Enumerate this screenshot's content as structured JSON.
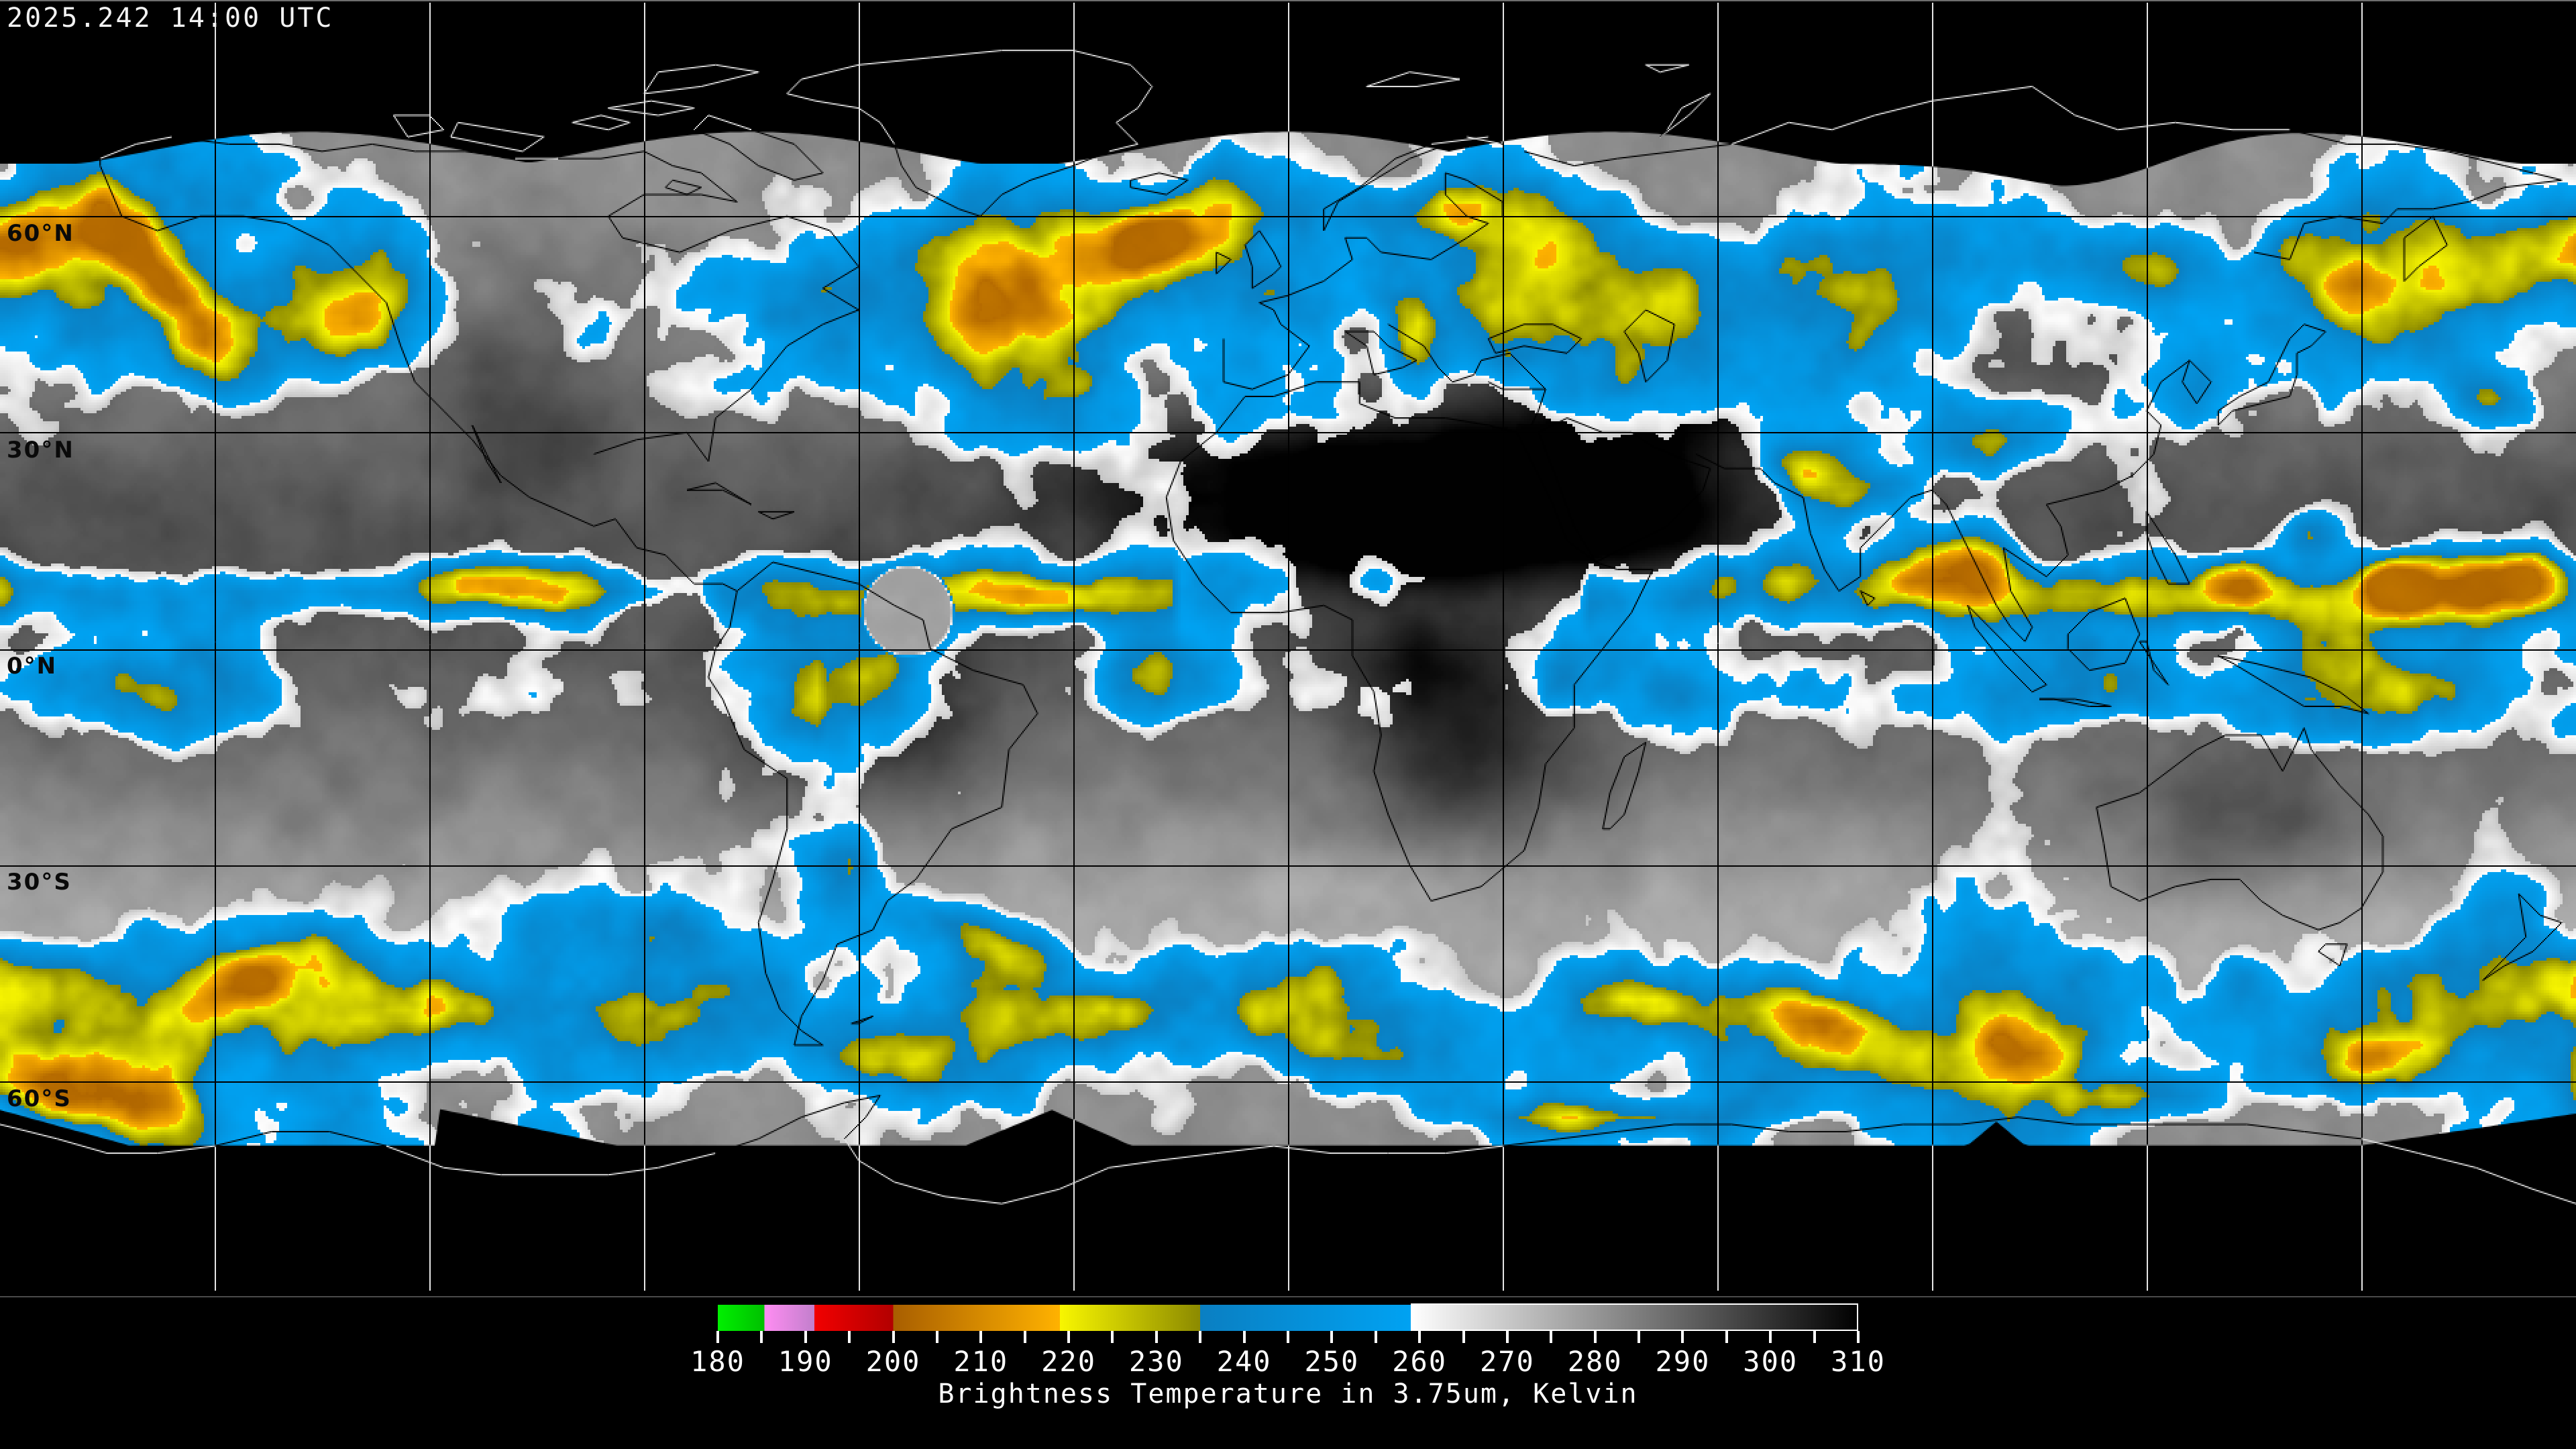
{
  "header": {
    "timestamp": "2025.242 14:00 UTC"
  },
  "map": {
    "projection": "equirectangular",
    "lon_range": [
      -180,
      180
    ],
    "lat_range": [
      -90,
      90
    ],
    "grid": {
      "lon_step_deg": 30,
      "lat_step_deg": 30
    },
    "latitude_labels": [
      {
        "text": "60°N",
        "lat": 60
      },
      {
        "text": "30°N",
        "lat": 30
      },
      {
        "text": "0°N",
        "lat": 0
      },
      {
        "text": "30°S",
        "lat": -30
      },
      {
        "text": "60°S",
        "lat": -60
      }
    ]
  },
  "legend": {
    "caption": "Brightness Temperature in 3.75um, Kelvin",
    "unit": "Kelvin",
    "min": 180,
    "max": 310,
    "tick_step": 5,
    "label_step": 10,
    "tick_labels": [
      "180",
      "190",
      "200",
      "210",
      "220",
      "230",
      "240",
      "250",
      "260",
      "270",
      "280",
      "290",
      "300",
      "310"
    ],
    "palette_segments": [
      {
        "from": 180,
        "to": 185.3,
        "c0": "#00f000",
        "c1": "#00c000"
      },
      {
        "from": 185.3,
        "to": 191,
        "c0": "#ff8df2",
        "c1": "#c27fcc"
      },
      {
        "from": 191,
        "to": 200,
        "c0": "#f20000",
        "c1": "#b20000"
      },
      {
        "from": 200,
        "to": 219,
        "c0": "#a85e00",
        "c1": "#ffb200"
      },
      {
        "from": 219,
        "to": 235,
        "c0": "#f8f600",
        "c1": "#8c8a00"
      },
      {
        "from": 235,
        "to": 259,
        "c0": "#0a7fc2",
        "c1": "#00a2f2"
      },
      {
        "from": 259,
        "to": 310,
        "c0": "#ffffff",
        "c1": "#000000"
      }
    ],
    "outline_from": 259
  },
  "colors": {
    "background": "#000000",
    "timestamp_text": "#f2f2f2",
    "lat_label_text": "#0a0a0a",
    "grid_over_data": "#000000",
    "grid_over_void": "#e6e6e6",
    "coast_over_data": "#000000",
    "coast_over_void": "#e6e6e6",
    "tick": "#ffffff",
    "tick_label_text": "#ffffff",
    "caption_text": "#ffffff",
    "colorbar_outline": "#ffffff"
  }
}
